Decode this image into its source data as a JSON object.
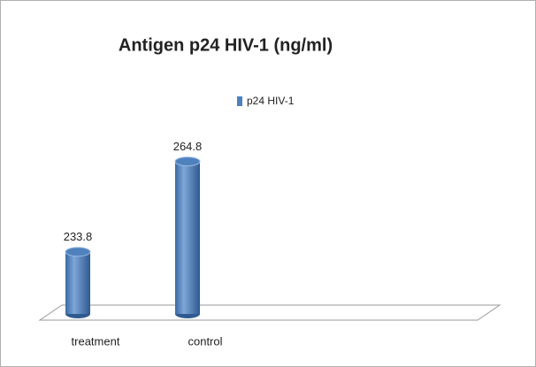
{
  "chart_data": {
    "type": "bar",
    "title": "Antigen p24 HIV-1 (ng/ml)",
    "categories": [
      "treatment",
      "control"
    ],
    "series": [
      {
        "name": "p24 HIV-1",
        "color": "#4f81bd",
        "values": [
          233.8,
          264.8
        ]
      }
    ],
    "ylim": [
      212.5,
      275
    ],
    "show_value_labels": true,
    "legend": "top"
  }
}
